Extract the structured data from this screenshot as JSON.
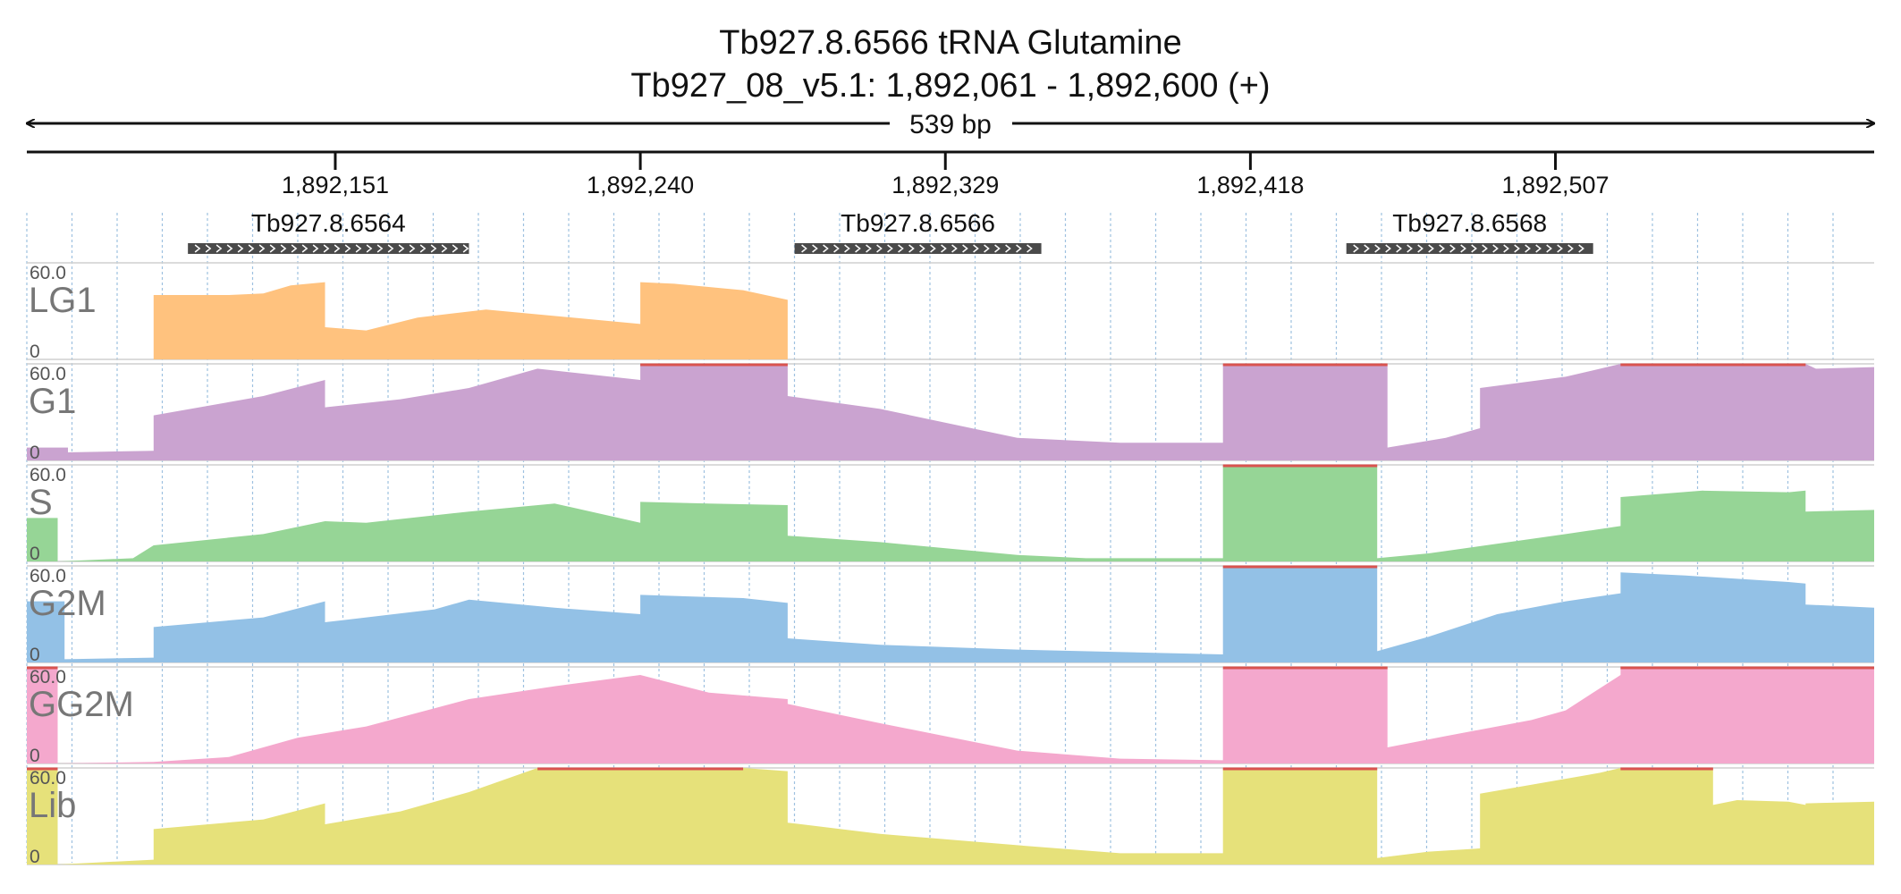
{
  "title": "Tb927.8.6566  tRNA Glutamine",
  "subtitle": "Tb927_08_v5.1: 1,892,061 - 1,892,600 (+)",
  "span_label": "539 bp",
  "colors": {
    "LG1": "#ffc27e",
    "G1": "#caa3d0",
    "S": "#96d596",
    "G2M": "#93c1e6",
    "GG2M": "#f4a8cd",
    "Lib": "#e6e17a",
    "clip": "#d9534f",
    "gene": "#4a4a4a",
    "grid": "#9ec1e0"
  },
  "chart_data": {
    "type": "area",
    "x_range": [
      1892061,
      1892600
    ],
    "x_ticks": [
      1892151,
      1892240,
      1892329,
      1892418,
      1892507
    ],
    "x_tick_labels": [
      "1,892,151",
      "1,892,240",
      "1,892,329",
      "1,892,418",
      "1,892,507"
    ],
    "ylim": [
      0,
      60
    ],
    "y_tick_labels": [
      "60.0",
      "0"
    ],
    "genes": [
      {
        "name": "Tb927.8.6564",
        "start": 1892108,
        "end": 1892190,
        "strand": "+"
      },
      {
        "name": "Tb927.8.6566",
        "start": 1892285,
        "end": 1892357,
        "strand": "+"
      },
      {
        "name": "Tb927.8.6568",
        "start": 1892446,
        "end": 1892518,
        "strand": "+"
      }
    ],
    "series": [
      {
        "name": "LG1",
        "points": [
          [
            1892061,
            0
          ],
          [
            1892098,
            0
          ],
          [
            1892098,
            40
          ],
          [
            1892120,
            40
          ],
          [
            1892130,
            41
          ],
          [
            1892138,
            46
          ],
          [
            1892148,
            48
          ],
          [
            1892148,
            20
          ],
          [
            1892160,
            18
          ],
          [
            1892175,
            26
          ],
          [
            1892195,
            31
          ],
          [
            1892210,
            28
          ],
          [
            1892240,
            22
          ],
          [
            1892240,
            48
          ],
          [
            1892250,
            47
          ],
          [
            1892270,
            43
          ],
          [
            1892283,
            37
          ],
          [
            1892283,
            0
          ],
          [
            1892600,
            0
          ]
        ]
      },
      {
        "name": "G1",
        "points": [
          [
            1892061,
            8
          ],
          [
            1892073,
            8
          ],
          [
            1892073,
            5
          ],
          [
            1892098,
            6
          ],
          [
            1892098,
            28
          ],
          [
            1892130,
            40
          ],
          [
            1892148,
            50
          ],
          [
            1892148,
            33
          ],
          [
            1892170,
            38
          ],
          [
            1892190,
            45
          ],
          [
            1892210,
            57
          ],
          [
            1892240,
            50
          ],
          [
            1892240,
            60
          ],
          [
            1892283,
            60
          ],
          [
            1892283,
            40
          ],
          [
            1892310,
            32
          ],
          [
            1892350,
            14
          ],
          [
            1892380,
            11
          ],
          [
            1892410,
            11
          ],
          [
            1892410,
            60
          ],
          [
            1892458,
            60
          ],
          [
            1892458,
            8
          ],
          [
            1892475,
            14
          ],
          [
            1892485,
            20
          ],
          [
            1892485,
            45
          ],
          [
            1892510,
            52
          ],
          [
            1892526,
            60
          ],
          [
            1892580,
            60
          ],
          [
            1892583,
            57
          ],
          [
            1892600,
            58
          ]
        ]
      },
      {
        "name": "S",
        "points": [
          [
            1892061,
            27
          ],
          [
            1892070,
            27
          ],
          [
            1892070,
            0
          ],
          [
            1892092,
            2
          ],
          [
            1892098,
            10
          ],
          [
            1892130,
            17
          ],
          [
            1892148,
            25
          ],
          [
            1892160,
            24
          ],
          [
            1892190,
            31
          ],
          [
            1892215,
            36
          ],
          [
            1892240,
            24
          ],
          [
            1892240,
            37
          ],
          [
            1892260,
            36
          ],
          [
            1892283,
            35
          ],
          [
            1892283,
            16
          ],
          [
            1892310,
            12
          ],
          [
            1892350,
            4
          ],
          [
            1892370,
            2
          ],
          [
            1892410,
            2
          ],
          [
            1892410,
            60
          ],
          [
            1892455,
            60
          ],
          [
            1892455,
            2
          ],
          [
            1892470,
            5
          ],
          [
            1892510,
            17
          ],
          [
            1892526,
            22
          ],
          [
            1892526,
            40
          ],
          [
            1892550,
            44
          ],
          [
            1892575,
            43
          ],
          [
            1892580,
            44
          ],
          [
            1892580,
            31
          ],
          [
            1892600,
            32
          ]
        ]
      },
      {
        "name": "G2M",
        "points": [
          [
            1892061,
            38
          ],
          [
            1892072,
            38
          ],
          [
            1892072,
            2
          ],
          [
            1892098,
            3
          ],
          [
            1892098,
            22
          ],
          [
            1892130,
            28
          ],
          [
            1892148,
            38
          ],
          [
            1892148,
            25
          ],
          [
            1892180,
            33
          ],
          [
            1892190,
            39
          ],
          [
            1892215,
            34
          ],
          [
            1892240,
            30
          ],
          [
            1892240,
            42
          ],
          [
            1892270,
            40
          ],
          [
            1892283,
            37
          ],
          [
            1892283,
            15
          ],
          [
            1892310,
            11
          ],
          [
            1892350,
            8
          ],
          [
            1892410,
            5
          ],
          [
            1892410,
            60
          ],
          [
            1892455,
            60
          ],
          [
            1892455,
            7
          ],
          [
            1892470,
            16
          ],
          [
            1892490,
            30
          ],
          [
            1892510,
            38
          ],
          [
            1892526,
            43
          ],
          [
            1892526,
            56
          ],
          [
            1892545,
            54
          ],
          [
            1892575,
            50
          ],
          [
            1892580,
            49
          ],
          [
            1892580,
            36
          ],
          [
            1892600,
            34
          ]
        ]
      },
      {
        "name": "GG2M",
        "points": [
          [
            1892061,
            60
          ],
          [
            1892070,
            60
          ],
          [
            1892070,
            0
          ],
          [
            1892098,
            1
          ],
          [
            1892120,
            4
          ],
          [
            1892140,
            16
          ],
          [
            1892160,
            23
          ],
          [
            1892190,
            40
          ],
          [
            1892215,
            48
          ],
          [
            1892240,
            55
          ],
          [
            1892260,
            44
          ],
          [
            1892283,
            40
          ],
          [
            1892283,
            37
          ],
          [
            1892310,
            25
          ],
          [
            1892350,
            8
          ],
          [
            1892380,
            3
          ],
          [
            1892410,
            2
          ],
          [
            1892410,
            60
          ],
          [
            1892458,
            60
          ],
          [
            1892458,
            10
          ],
          [
            1892475,
            17
          ],
          [
            1892500,
            27
          ],
          [
            1892510,
            33
          ],
          [
            1892526,
            55
          ],
          [
            1892526,
            60
          ],
          [
            1892600,
            60
          ]
        ]
      },
      {
        "name": "Lib",
        "points": [
          [
            1892061,
            60
          ],
          [
            1892070,
            60
          ],
          [
            1892070,
            0
          ],
          [
            1892098,
            3
          ],
          [
            1892098,
            22
          ],
          [
            1892130,
            28
          ],
          [
            1892148,
            38
          ],
          [
            1892148,
            25
          ],
          [
            1892170,
            33
          ],
          [
            1892190,
            45
          ],
          [
            1892210,
            60
          ],
          [
            1892270,
            60
          ],
          [
            1892283,
            58
          ],
          [
            1892283,
            26
          ],
          [
            1892310,
            19
          ],
          [
            1892350,
            12
          ],
          [
            1892380,
            7
          ],
          [
            1892410,
            7
          ],
          [
            1892410,
            60
          ],
          [
            1892455,
            60
          ],
          [
            1892455,
            4
          ],
          [
            1892470,
            8
          ],
          [
            1892485,
            10
          ],
          [
            1892485,
            44
          ],
          [
            1892520,
            57
          ],
          [
            1892526,
            60
          ],
          [
            1892553,
            60
          ],
          [
            1892553,
            37
          ],
          [
            1892560,
            40
          ],
          [
            1892575,
            39
          ],
          [
            1892580,
            37
          ],
          [
            1892580,
            38
          ],
          [
            1892600,
            39
          ]
        ]
      }
    ]
  }
}
